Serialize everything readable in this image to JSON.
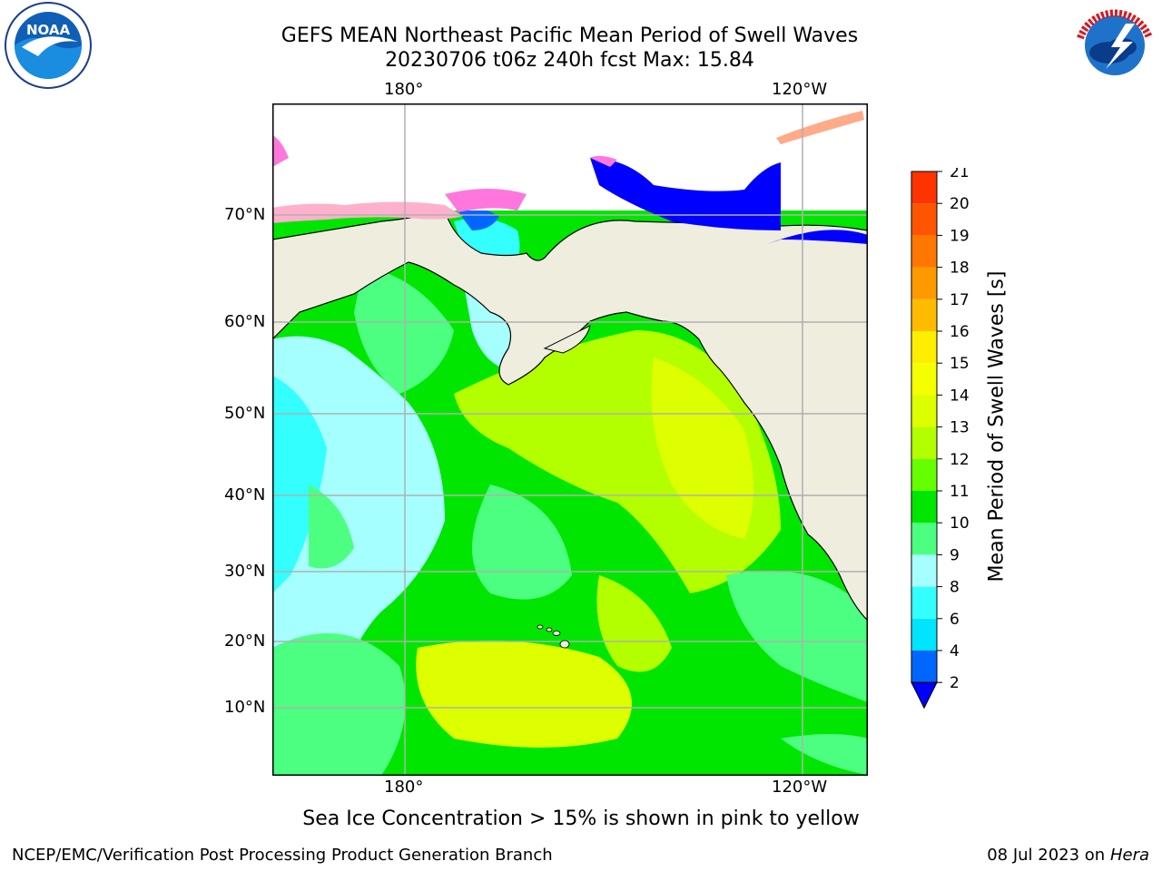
{
  "header": {
    "title_line1": "GEFS MEAN Northeast Pacific Mean Period of Swell Waves",
    "title_line2": "20230706 t06z 240h fcst   Max: 15.84"
  },
  "logos": {
    "left": {
      "name": "NOAA",
      "ring_text": "NATIONAL OCEANIC AND ATMOSPHERIC ADMINISTRATION · U.S. DEPARTMENT OF COMMERCE"
    },
    "right": {
      "name": "NATIONAL WEATHER SERVICE"
    }
  },
  "map": {
    "lon_labels_top": [
      "180°",
      "120°W"
    ],
    "lon_labels_bottom": [
      "180°",
      "120°W"
    ],
    "lat_labels": [
      "70°N",
      "60°N",
      "50°N",
      "40°N",
      "30°N",
      "20°N",
      "10°N"
    ],
    "colors": {
      "land": "#efedde",
      "coast": "#000000",
      "grid": "#b0b0b0"
    }
  },
  "colorbar": {
    "title": "Mean Period of Swell Waves [s]",
    "ticks": [
      "2",
      "4",
      "6",
      "8",
      "9",
      "10",
      "11",
      "12",
      "13",
      "14",
      "15",
      "16",
      "17",
      "18",
      "19",
      "20",
      "21"
    ],
    "under_color": "#0000ff",
    "colors": [
      "#0066ff",
      "#00e5ff",
      "#33ffff",
      "#a6ffff",
      "#4dff80",
      "#00e600",
      "#66ff00",
      "#b3ff00",
      "#ddff00",
      "#f5ff00",
      "#ffee00",
      "#ffbb00",
      "#ff9900",
      "#ff7700",
      "#ff5500",
      "#ff3300",
      "#ff0000"
    ]
  },
  "footnote": "Sea Ice Concentration > 15% is shown in pink to yellow",
  "footer": {
    "left": "NCEP/EMC/Verification Post Processing Product Generation Branch",
    "right_prefix": "08 Jul 2023 on ",
    "right_host": "Hera"
  }
}
